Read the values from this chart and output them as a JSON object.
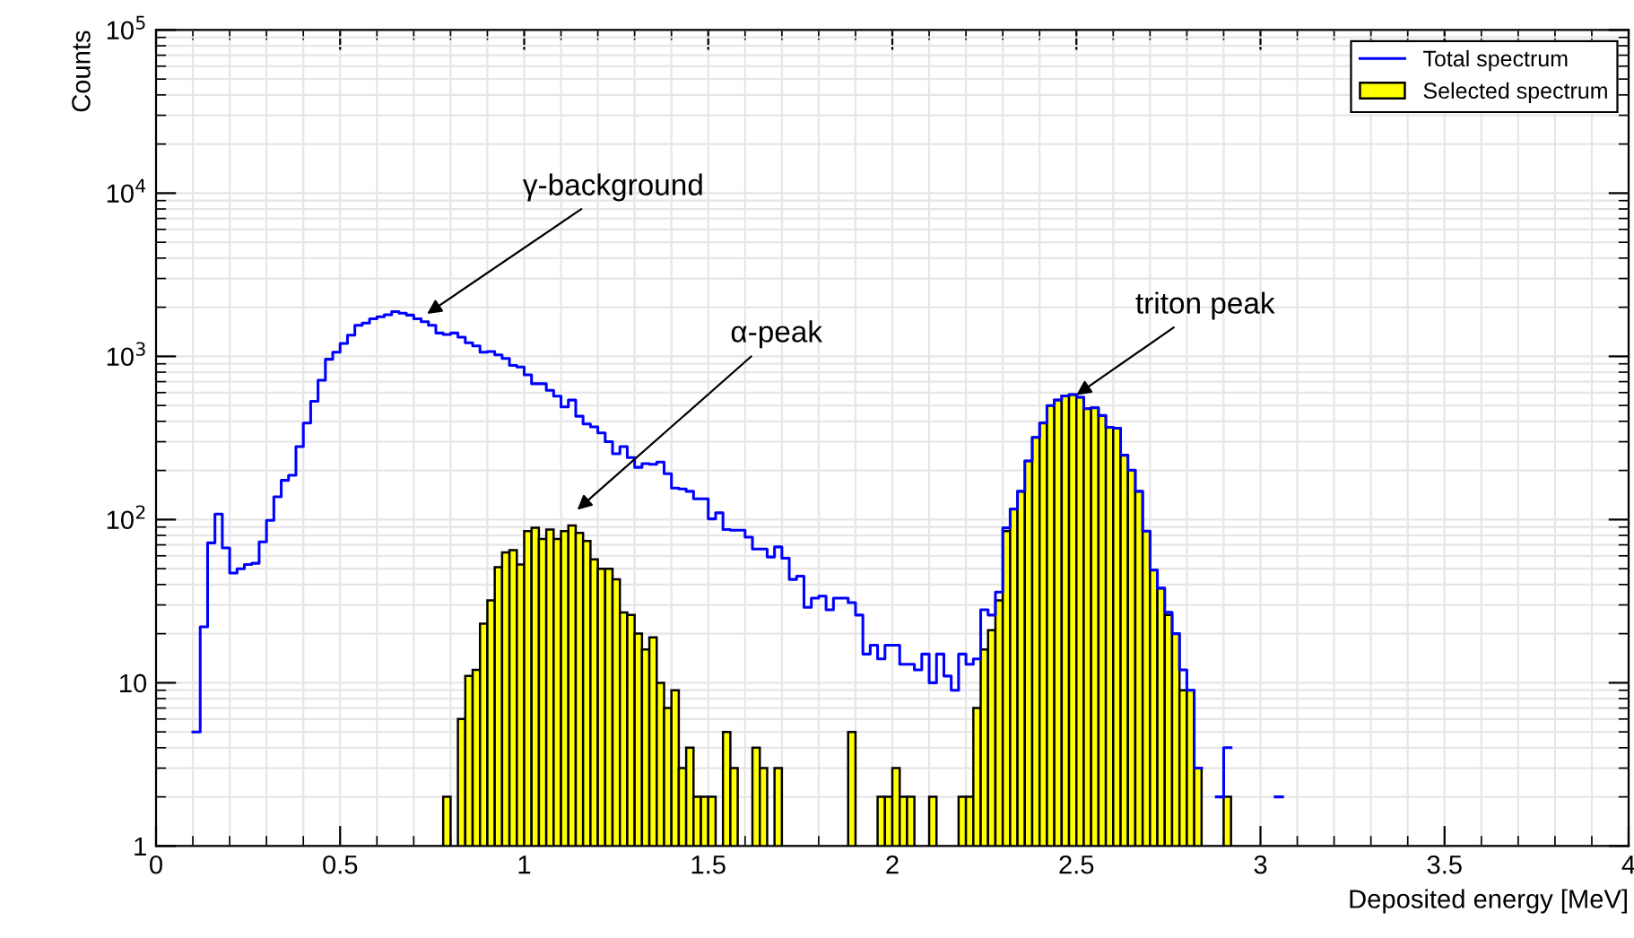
{
  "chart_data": {
    "type": "histogram",
    "xlabel": "Deposited energy [MeV]",
    "ylabel": "Counts",
    "bins": [
      0.1,
      0.12,
      0.14,
      0.16,
      0.18,
      0.2,
      0.22,
      0.24,
      0.26,
      0.28,
      0.3,
      0.32,
      0.34,
      0.36,
      0.38,
      0.4,
      0.42,
      0.44,
      0.46,
      0.48,
      0.5,
      0.52,
      0.54,
      0.56,
      0.58,
      0.6,
      0.62,
      0.64,
      0.66,
      0.68,
      0.7,
      0.72,
      0.74,
      0.76,
      0.78,
      0.8,
      0.82,
      0.84,
      0.86,
      0.88,
      0.9,
      0.92,
      0.94,
      0.96,
      0.98,
      1.0,
      1.02,
      1.04,
      1.06,
      1.08,
      1.1,
      1.12,
      1.14,
      1.16,
      1.18,
      1.2,
      1.22,
      1.24,
      1.26,
      1.28,
      1.3,
      1.32,
      1.34,
      1.36,
      1.38,
      1.4,
      1.42,
      1.44,
      1.46,
      1.48,
      1.5,
      1.52,
      1.54,
      1.56,
      1.58,
      1.6,
      1.62,
      1.64,
      1.66,
      1.68,
      1.7,
      1.72,
      1.74,
      1.76,
      1.78,
      1.8,
      1.82,
      1.84,
      1.86,
      1.88,
      1.9,
      1.92,
      1.94,
      1.96,
      1.98,
      2.0,
      2.02,
      2.04,
      2.06,
      2.08,
      2.1,
      2.12,
      2.14,
      2.16,
      2.18,
      2.2,
      2.22,
      2.24,
      2.26,
      2.28,
      2.3,
      2.32,
      2.34,
      2.36,
      2.38,
      2.4,
      2.42,
      2.44,
      2.46,
      2.48,
      2.5,
      2.52,
      2.54,
      2.56,
      2.58,
      2.6,
      2.62,
      2.64,
      2.66,
      2.68,
      2.7,
      2.72,
      2.74,
      2.76,
      2.78,
      2.8,
      2.82,
      2.84,
      2.86,
      2.88,
      2.9,
      2.92,
      2.94,
      2.96,
      2.98,
      3.0,
      3.02,
      3.04,
      3.06
    ],
    "series": [
      {
        "name": "Total spectrum",
        "color": "#0000ff",
        "type": "step",
        "x": [
          0.1,
          0.12,
          0.14,
          0.16,
          0.18,
          0.2,
          0.22,
          0.24,
          0.26,
          0.28,
          0.3,
          0.32,
          0.34,
          0.36,
          0.38,
          0.4,
          0.42,
          0.44,
          0.46,
          0.48,
          0.5,
          0.52,
          0.54,
          0.56,
          0.58,
          0.6,
          0.62,
          0.64,
          0.66,
          0.68,
          0.7,
          0.72,
          0.74,
          0.76,
          0.78,
          0.8,
          0.82,
          0.84,
          0.86,
          0.88,
          0.9,
          0.92,
          0.94,
          0.96,
          0.98,
          1.0,
          1.02,
          1.04,
          1.06,
          1.08,
          1.1,
          1.12,
          1.14,
          1.16,
          1.18,
          1.2,
          1.22,
          1.24,
          1.26,
          1.28,
          1.3,
          1.32,
          1.34,
          1.36,
          1.38,
          1.4,
          1.42,
          1.44,
          1.46,
          1.48,
          1.5,
          1.52,
          1.54,
          1.56,
          1.58,
          1.6,
          1.62,
          1.64,
          1.66,
          1.68,
          1.7,
          1.72,
          1.74,
          1.76,
          1.78,
          1.8,
          1.82,
          1.84,
          1.86,
          1.88,
          1.9,
          1.92,
          1.94,
          1.96,
          1.98,
          2.0,
          2.02,
          2.04,
          2.06,
          2.08,
          2.1,
          2.12,
          2.14,
          2.16,
          2.18,
          2.2,
          2.22,
          2.24,
          2.26,
          2.28,
          2.3,
          2.32,
          2.34,
          2.36,
          2.38,
          2.4,
          2.42,
          2.44,
          2.46,
          2.48,
          2.5,
          2.52,
          2.54,
          2.56,
          2.58,
          2.6,
          2.62,
          2.64,
          2.66,
          2.68,
          2.7,
          2.72,
          2.74,
          2.76,
          2.78,
          2.8,
          2.82,
          2.84,
          2.86,
          2.88,
          2.9,
          2.92,
          2.94,
          2.96,
          2.98,
          3.0,
          3.02,
          3.04
        ],
        "values": [
          5,
          22,
          72,
          108,
          67,
          47,
          50,
          53,
          54,
          73,
          99,
          138,
          174,
          187,
          280,
          390,
          530,
          715,
          960,
          1060,
          1200,
          1350,
          1550,
          1600,
          1700,
          1750,
          1800,
          1880,
          1840,
          1790,
          1700,
          1630,
          1550,
          1390,
          1360,
          1390,
          1310,
          1210,
          1160,
          1060,
          1070,
          1020,
          970,
          880,
          860,
          770,
          680,
          680,
          620,
          570,
          490,
          540,
          430,
          385,
          370,
          340,
          300,
          253,
          280,
          240,
          209,
          220,
          218,
          225,
          191,
          156,
          154,
          149,
          134,
          134,
          101,
          110,
          87,
          86,
          86,
          78,
          66,
          66,
          59,
          68,
          58,
          43,
          45,
          29,
          33,
          34,
          28,
          33,
          33,
          31,
          26,
          15,
          17,
          14,
          17,
          17,
          13,
          13,
          12,
          15,
          10,
          15,
          11,
          9,
          15,
          13,
          14,
          28,
          26,
          36,
          89,
          116,
          149,
          229,
          319,
          390,
          500,
          540,
          572,
          583,
          561,
          478,
          484,
          434,
          368,
          363,
          248,
          201,
          149,
          85,
          49,
          38,
          27,
          20,
          12,
          9,
          3,
          null,
          null,
          2,
          4,
          null,
          null,
          null,
          null,
          null,
          null,
          2
        ]
      },
      {
        "name": "Selected spectrum",
        "color": "#ffff00",
        "type": "histogram",
        "values": [
          null,
          null,
          null,
          null,
          null,
          null,
          null,
          null,
          null,
          null,
          null,
          null,
          null,
          null,
          null,
          null,
          null,
          null,
          null,
          null,
          null,
          null,
          null,
          null,
          null,
          null,
          null,
          null,
          null,
          null,
          null,
          null,
          null,
          null,
          2,
          null,
          6,
          11,
          12,
          23,
          32,
          51,
          63,
          65,
          53,
          85,
          89,
          76,
          87,
          76,
          85,
          92,
          83,
          74,
          57,
          50,
          50,
          43,
          27,
          26,
          20,
          16,
          19,
          10,
          7,
          9,
          3,
          4,
          2,
          2,
          2,
          null,
          5,
          3,
          null,
          null,
          4,
          3,
          null,
          3,
          null,
          null,
          null,
          null,
          null,
          null,
          null,
          null,
          null,
          5,
          null,
          null,
          null,
          2,
          2,
          3,
          2,
          2,
          null,
          null,
          2,
          null,
          null,
          null,
          2,
          2,
          7,
          16,
          21,
          32,
          85,
          116,
          149,
          229,
          319,
          390,
          500,
          540,
          572,
          583,
          561,
          478,
          484,
          434,
          368,
          363,
          248,
          201,
          149,
          85,
          49,
          38,
          26,
          20,
          9,
          9,
          3,
          null,
          null,
          null,
          2,
          null,
          null,
          null,
          null,
          null,
          null,
          null
        ]
      }
    ],
    "annotations": [
      "γ-background",
      "α-peak",
      {
        "text": "triton peak",
        "x": 2.5,
        "y": 580
      }
    ],
    "log": "y",
    "xlim": [
      0,
      4
    ],
    "xticks": [
      0,
      0.5,
      1,
      1.5,
      2,
      2.5,
      3,
      3.5,
      4
    ],
    "ylim": [
      1,
      100000
    ],
    "yticks": [
      1,
      10,
      {
        "value": 100,
        "label": "10$^{2}$"
      },
      {
        "value": 1000,
        "label": "10$^{3}$"
      },
      {
        "value": 10000,
        "label": "10$^{4}$"
      },
      {
        "value": 100000,
        "label": "10$^{5}$"
      }
    ],
    "grid": true,
    "legend": "top right"
  }
}
